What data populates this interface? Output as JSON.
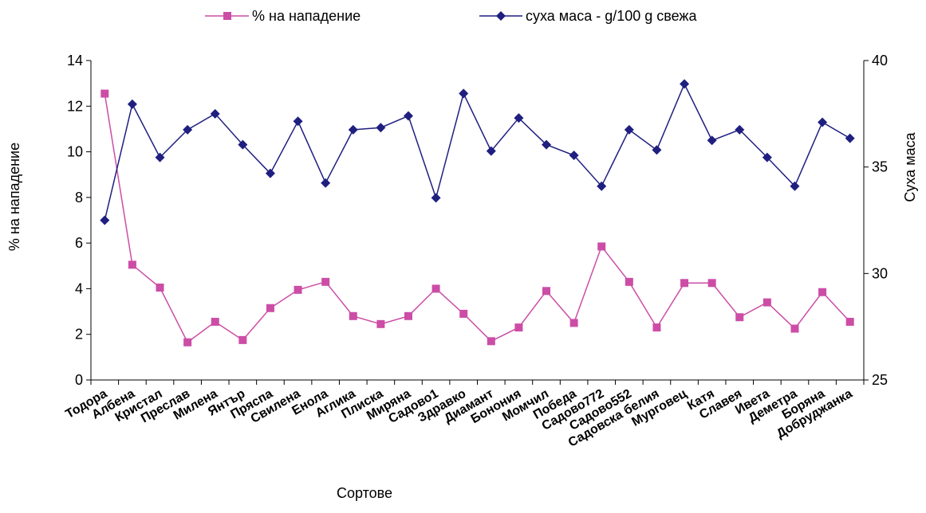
{
  "chart_data": {
    "type": "line",
    "categories": [
      "Тодора",
      "Албена",
      "Кристал",
      "Преслав",
      "Милена",
      "Янтър",
      "Пряспа",
      "Свилена",
      "Енола",
      "Аглика",
      "Плиска",
      "Миряна",
      "Садово1",
      "Здравко",
      "Диамант",
      "Бонония",
      "Момчил",
      "Победа",
      "Садово772",
      "Садово552",
      "Садовска белия",
      "Мурговец",
      "Катя",
      "Славея",
      "Ивета",
      "Деметра",
      "Боряна",
      "Добруджанка"
    ],
    "series": [
      {
        "name": "% на нападение",
        "axis": "left",
        "color": "#cc4da6",
        "marker": "square",
        "values": [
          12.55,
          5.05,
          4.05,
          1.65,
          2.55,
          1.75,
          3.15,
          3.95,
          4.3,
          2.8,
          2.45,
          2.8,
          4.0,
          2.9,
          1.7,
          2.3,
          3.9,
          2.5,
          5.85,
          4.3,
          2.3,
          4.25,
          4.25,
          2.75,
          3.4,
          2.25,
          3.85,
          2.55
        ]
      },
      {
        "name": "суха маса - g/100 g свежа",
        "axis": "right",
        "color": "#1f1f80",
        "marker": "diamond",
        "values": [
          32.5,
          37.95,
          35.45,
          36.75,
          37.5,
          36.05,
          34.7,
          37.15,
          34.25,
          36.75,
          36.85,
          37.4,
          33.55,
          38.45,
          35.75,
          37.3,
          36.05,
          35.55,
          34.1,
          36.75,
          35.8,
          38.9,
          36.25,
          36.75,
          35.45,
          34.1,
          37.1,
          36.35
        ]
      }
    ],
    "xlabel": "Сортове",
    "ylabel": "% на нападение",
    "y2label": "Суха маса",
    "ylim": [
      0,
      14
    ],
    "y2lim": [
      25,
      40
    ],
    "yticks": [
      0,
      2,
      4,
      6,
      8,
      10,
      12,
      14
    ],
    "y2ticks": [
      25,
      30,
      35,
      40
    ],
    "grid": false,
    "legend": "top"
  }
}
